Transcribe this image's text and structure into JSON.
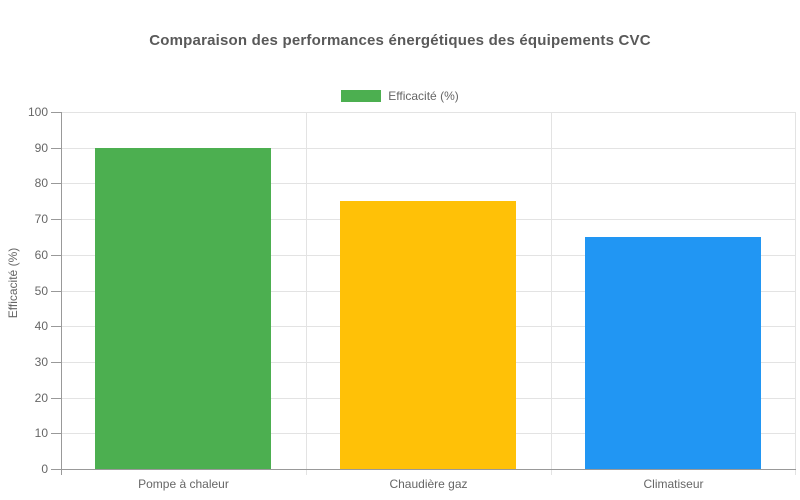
{
  "chart_data": {
    "type": "bar",
    "title": "Comparaison des performances énergétiques des équipements CVC",
    "legend_label": "Efficacité (%)",
    "legend_color": "#4caf50",
    "legend_position": "top",
    "categories": [
      "Pompe à chaleur",
      "Chaudière gaz",
      "Climatiseur"
    ],
    "values": [
      90,
      75,
      65
    ],
    "bar_colors": [
      "#4caf50",
      "#ffc107",
      "#2196f3"
    ],
    "ylabel": "Efficacité (%)",
    "ylim": [
      0,
      100
    ],
    "ytick_step": 10,
    "ytick_labels": [
      "0",
      "10",
      "20",
      "30",
      "40",
      "50",
      "60",
      "70",
      "80",
      "90",
      "100"
    ],
    "grid": true,
    "style_colors": {
      "grid": "#e3e3e3",
      "axis": "#999999",
      "tick_text": "#666666",
      "title_text": "#595959",
      "background": "#ffffff"
    }
  }
}
